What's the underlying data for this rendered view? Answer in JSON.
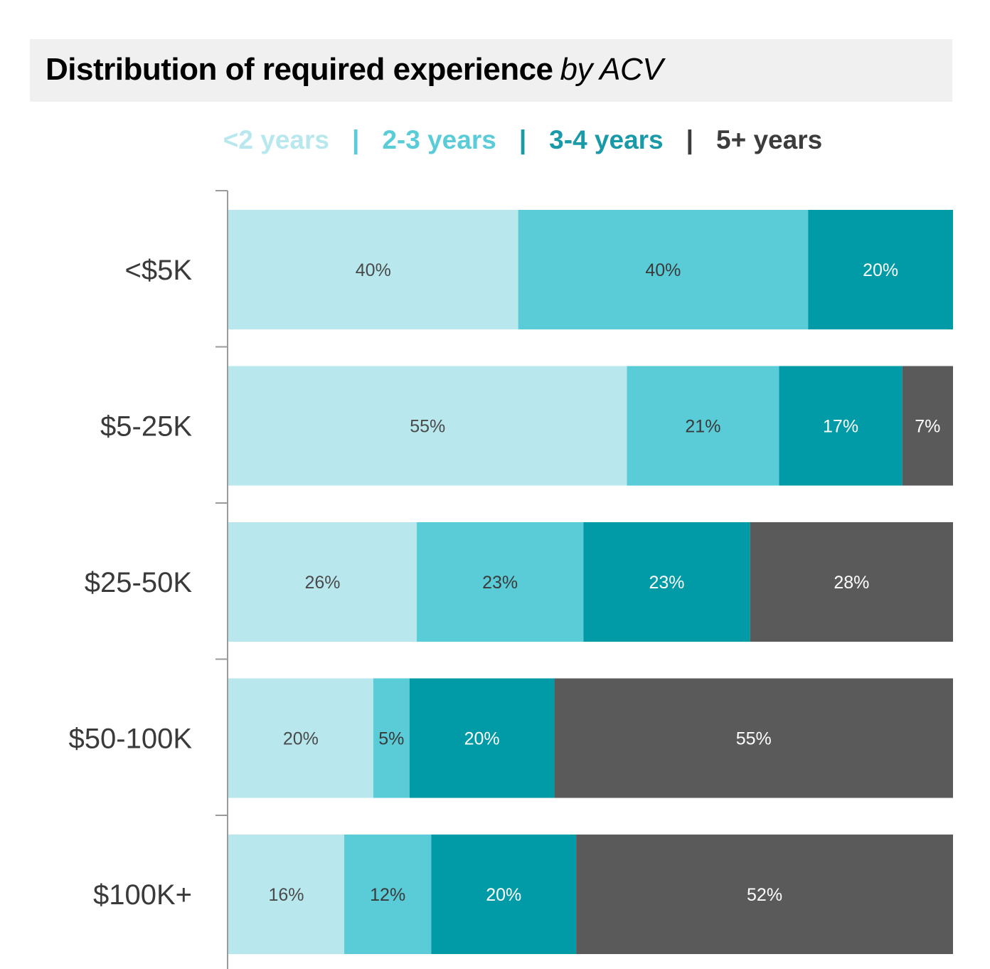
{
  "chart_data": {
    "type": "bar",
    "orientation": "horizontal",
    "stacked": true,
    "title": "Distribution of required experience",
    "subtitle": "by ACV",
    "categories": [
      "<$5K",
      "$5-25K",
      "$25-50K",
      "$50-100K",
      "$100K+"
    ],
    "series": [
      {
        "name": "<2 years",
        "color": "#b8e8ee",
        "label_color": "#4a4a4a",
        "values": [
          40,
          55,
          26,
          20,
          16
        ],
        "labels": [
          "40%",
          "55%",
          "26%",
          "20%",
          "16%"
        ]
      },
      {
        "name": "2-3 years",
        "color": "#5accd8",
        "label_color": "#3a3a3a",
        "values": [
          40,
          21,
          23,
          5,
          12
        ],
        "labels": [
          "40%",
          "21%",
          "23%",
          "5%",
          "12%"
        ]
      },
      {
        "name": "3-4 years",
        "color": "#009ba6",
        "label_color": "#ffffff",
        "values": [
          20,
          17,
          23,
          20,
          20
        ],
        "labels": [
          "20%",
          "17%",
          "23%",
          "20%",
          "20%"
        ]
      },
      {
        "name": "5+ years",
        "color": "#5a5a5a",
        "label_color": "#ffffff",
        "values": [
          0,
          7,
          28,
          55,
          52
        ],
        "labels": [
          "",
          "7%",
          "28%",
          "55%",
          "52%"
        ]
      }
    ],
    "xlim": [
      0,
      100
    ],
    "legend_position": "top",
    "legend_colors": [
      "#b8e8ee",
      "#5accd8",
      "#1a9aa8",
      "#3c3c3c"
    ],
    "legend_separator": "|",
    "grid": false
  }
}
